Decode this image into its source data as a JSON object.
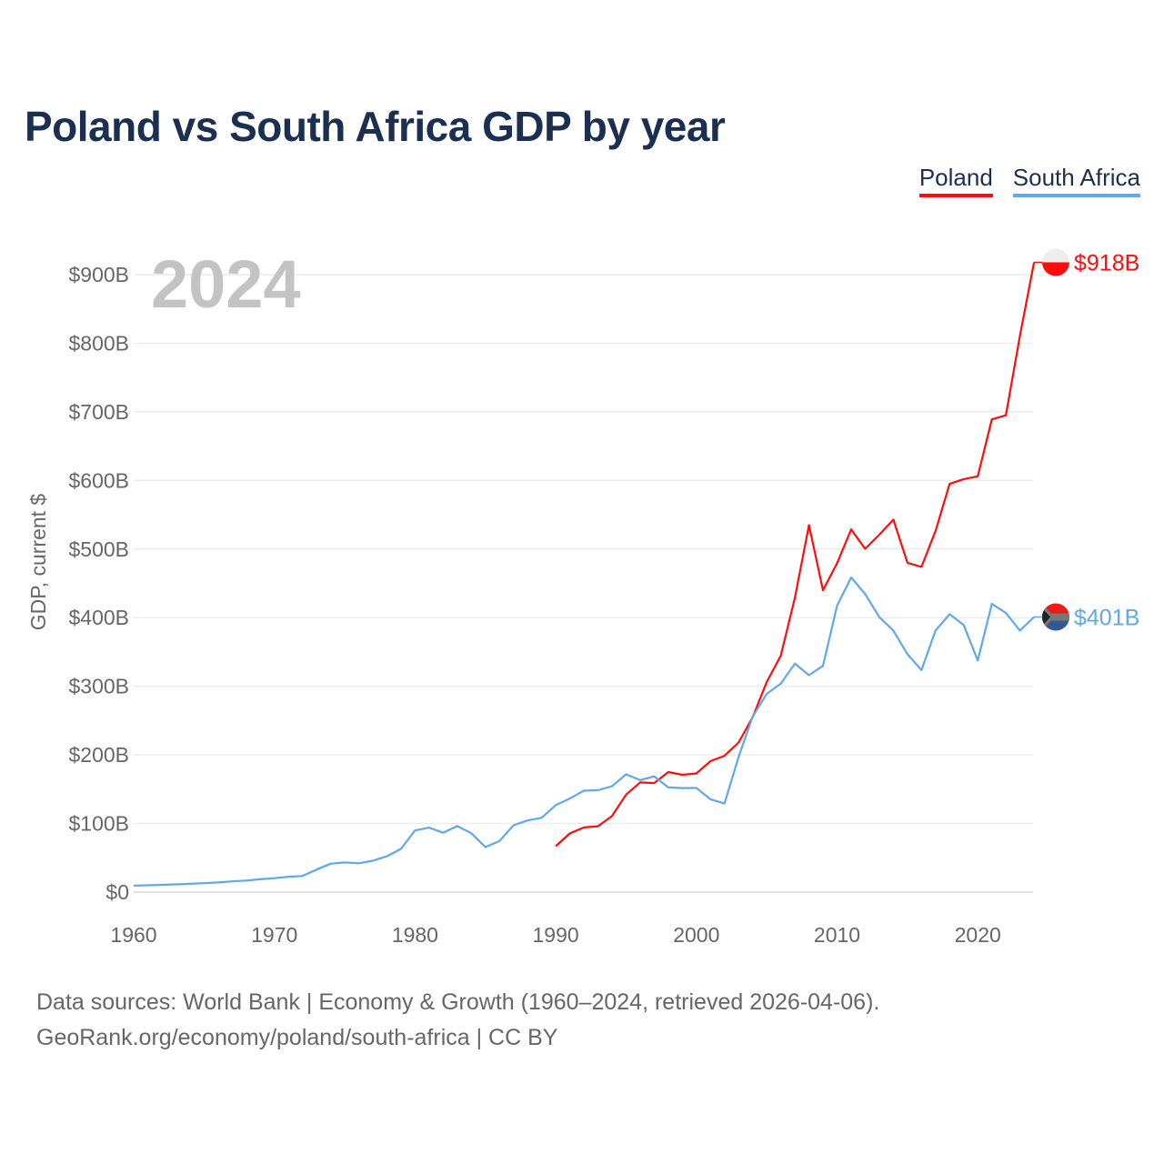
{
  "title": "Poland vs South Africa GDP by year",
  "year_badge": "2024",
  "footer": {
    "line1": "Data sources: World Bank | Economy & Growth (1960–2024, retrieved 2026-04-06).",
    "line2": "GeoRank.org/economy/poland/south-africa | CC BY"
  },
  "chart_data": {
    "type": "line",
    "title": "Poland vs South Africa GDP by year",
    "xlabel": "",
    "ylabel": "GDP, current $",
    "xlim": [
      1960,
      2024
    ],
    "ylim": [
      0,
      900
    ],
    "x_ticks": [
      "1960",
      "1970",
      "1980",
      "1990",
      "2000",
      "2010",
      "2020"
    ],
    "y_ticks": [
      "$0",
      "$100B",
      "$200B",
      "$300B",
      "$400B",
      "$500B",
      "$600B",
      "$700B",
      "$800B",
      "$900B"
    ],
    "grid": true,
    "legend_position": "top-right",
    "units": "billions USD",
    "series": [
      {
        "name": "Poland",
        "color": "#ff0d0d",
        "end_label": "$918B",
        "start_year": 1990,
        "values": [
          67,
          85.5,
          94.3,
          96,
          110.8,
          142.1,
          159.9,
          159,
          175,
          171,
          173,
          190.9,
          198.7,
          218,
          255.1,
          306.1,
          344.7,
          429,
          535,
          440,
          479.3,
          528.6,
          500.4,
          521,
          543,
          480,
          474,
          526.5,
          595,
          602,
          606,
          689,
          695,
          811,
          918
        ]
      },
      {
        "name": "South Africa",
        "color": "#5fa8ec",
        "end_label": "$401B",
        "start_year": 1960,
        "values": [
          9.5,
          10,
          10.6,
          11.3,
          12,
          13,
          14.1,
          15.6,
          16.8,
          18.7,
          20.3,
          22.4,
          23.5,
          32.9,
          41.3,
          43.2,
          42,
          45.7,
          52.2,
          63,
          89.9,
          94,
          86.6,
          96.3,
          85.8,
          65.6,
          74.3,
          97.4,
          104.4,
          108.3,
          126.7,
          136.4,
          147.8,
          148.4,
          154.3,
          171.7,
          163.2,
          168.7,
          152.6,
          151.6,
          151.8,
          135.4,
          129.1,
          197,
          255.8,
          288.9,
          303.9,
          333.1,
          316.1,
          329.8,
          417.4,
          458.7,
          434.4,
          400.9,
          381.2,
          346.7,
          323.6,
          381.4,
          405.1,
          389.3,
          337.6,
          420.1,
          406.9,
          381.2,
          401
        ]
      }
    ]
  }
}
